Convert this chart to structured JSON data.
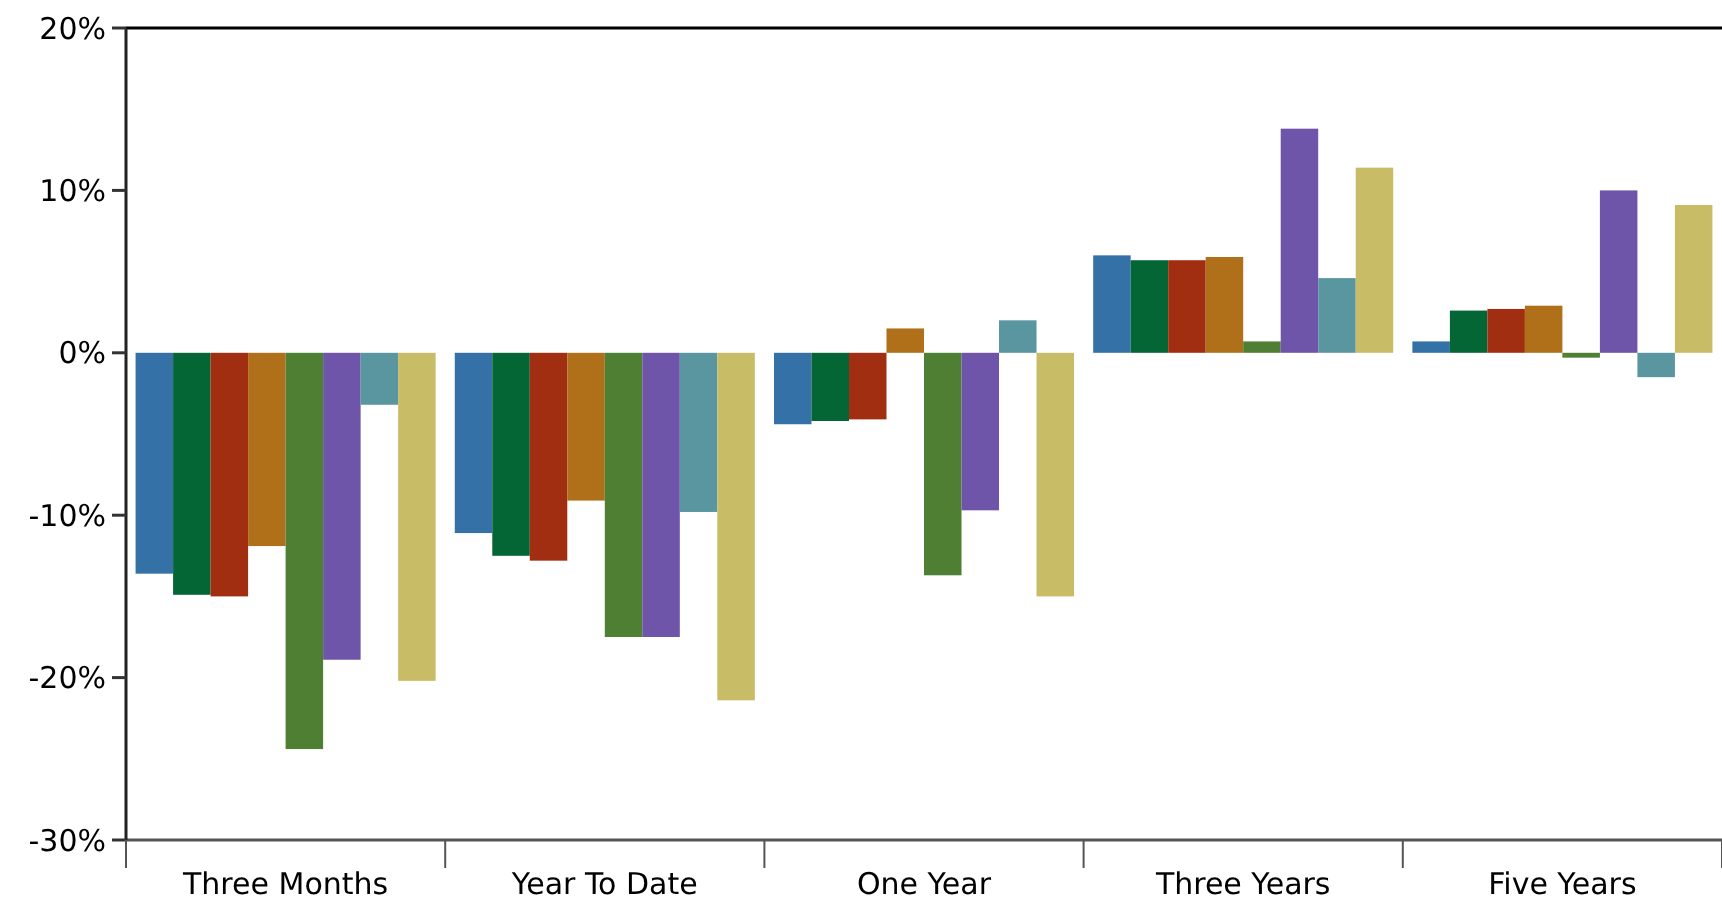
{
  "chart_data": {
    "type": "bar",
    "categories": [
      "Three Months",
      "Year To Date",
      "One Year",
      "Three Years",
      "Five Years"
    ],
    "series": [
      {
        "color": "#3371a6",
        "values": [
          -13.6,
          -11.1,
          -4.4,
          6.0,
          0.7
        ]
      },
      {
        "color": "#046535",
        "values": [
          -14.9,
          -12.5,
          -4.2,
          5.7,
          2.6
        ]
      },
      {
        "color": "#a22e11",
        "values": [
          -15.0,
          -12.8,
          -4.1,
          5.7,
          2.7
        ]
      },
      {
        "color": "#b06f19",
        "values": [
          -11.9,
          -9.1,
          1.5,
          5.9,
          2.9
        ]
      },
      {
        "color": "#4f7f32",
        "values": [
          -24.4,
          -17.5,
          -13.7,
          0.7,
          -0.3
        ]
      },
      {
        "color": "#6e55a9",
        "values": [
          -18.9,
          -17.5,
          -9.7,
          13.8,
          10.0
        ]
      },
      {
        "color": "#5a96a0",
        "values": [
          -3.2,
          -9.8,
          2.0,
          4.6,
          -1.5
        ]
      },
      {
        "color": "#c8bd66",
        "values": [
          -20.2,
          -21.4,
          -15.0,
          11.4,
          9.1
        ]
      }
    ],
    "ylim": [
      -30,
      20
    ],
    "yticks": [
      {
        "value": -30,
        "label": "-30%"
      },
      {
        "value": -20,
        "label": "-20%"
      },
      {
        "value": -10,
        "label": "-10%"
      },
      {
        "value": 0,
        "label": "0%"
      },
      {
        "value": 10,
        "label": "10%"
      },
      {
        "value": 20,
        "label": "20%"
      }
    ],
    "grid": false
  }
}
